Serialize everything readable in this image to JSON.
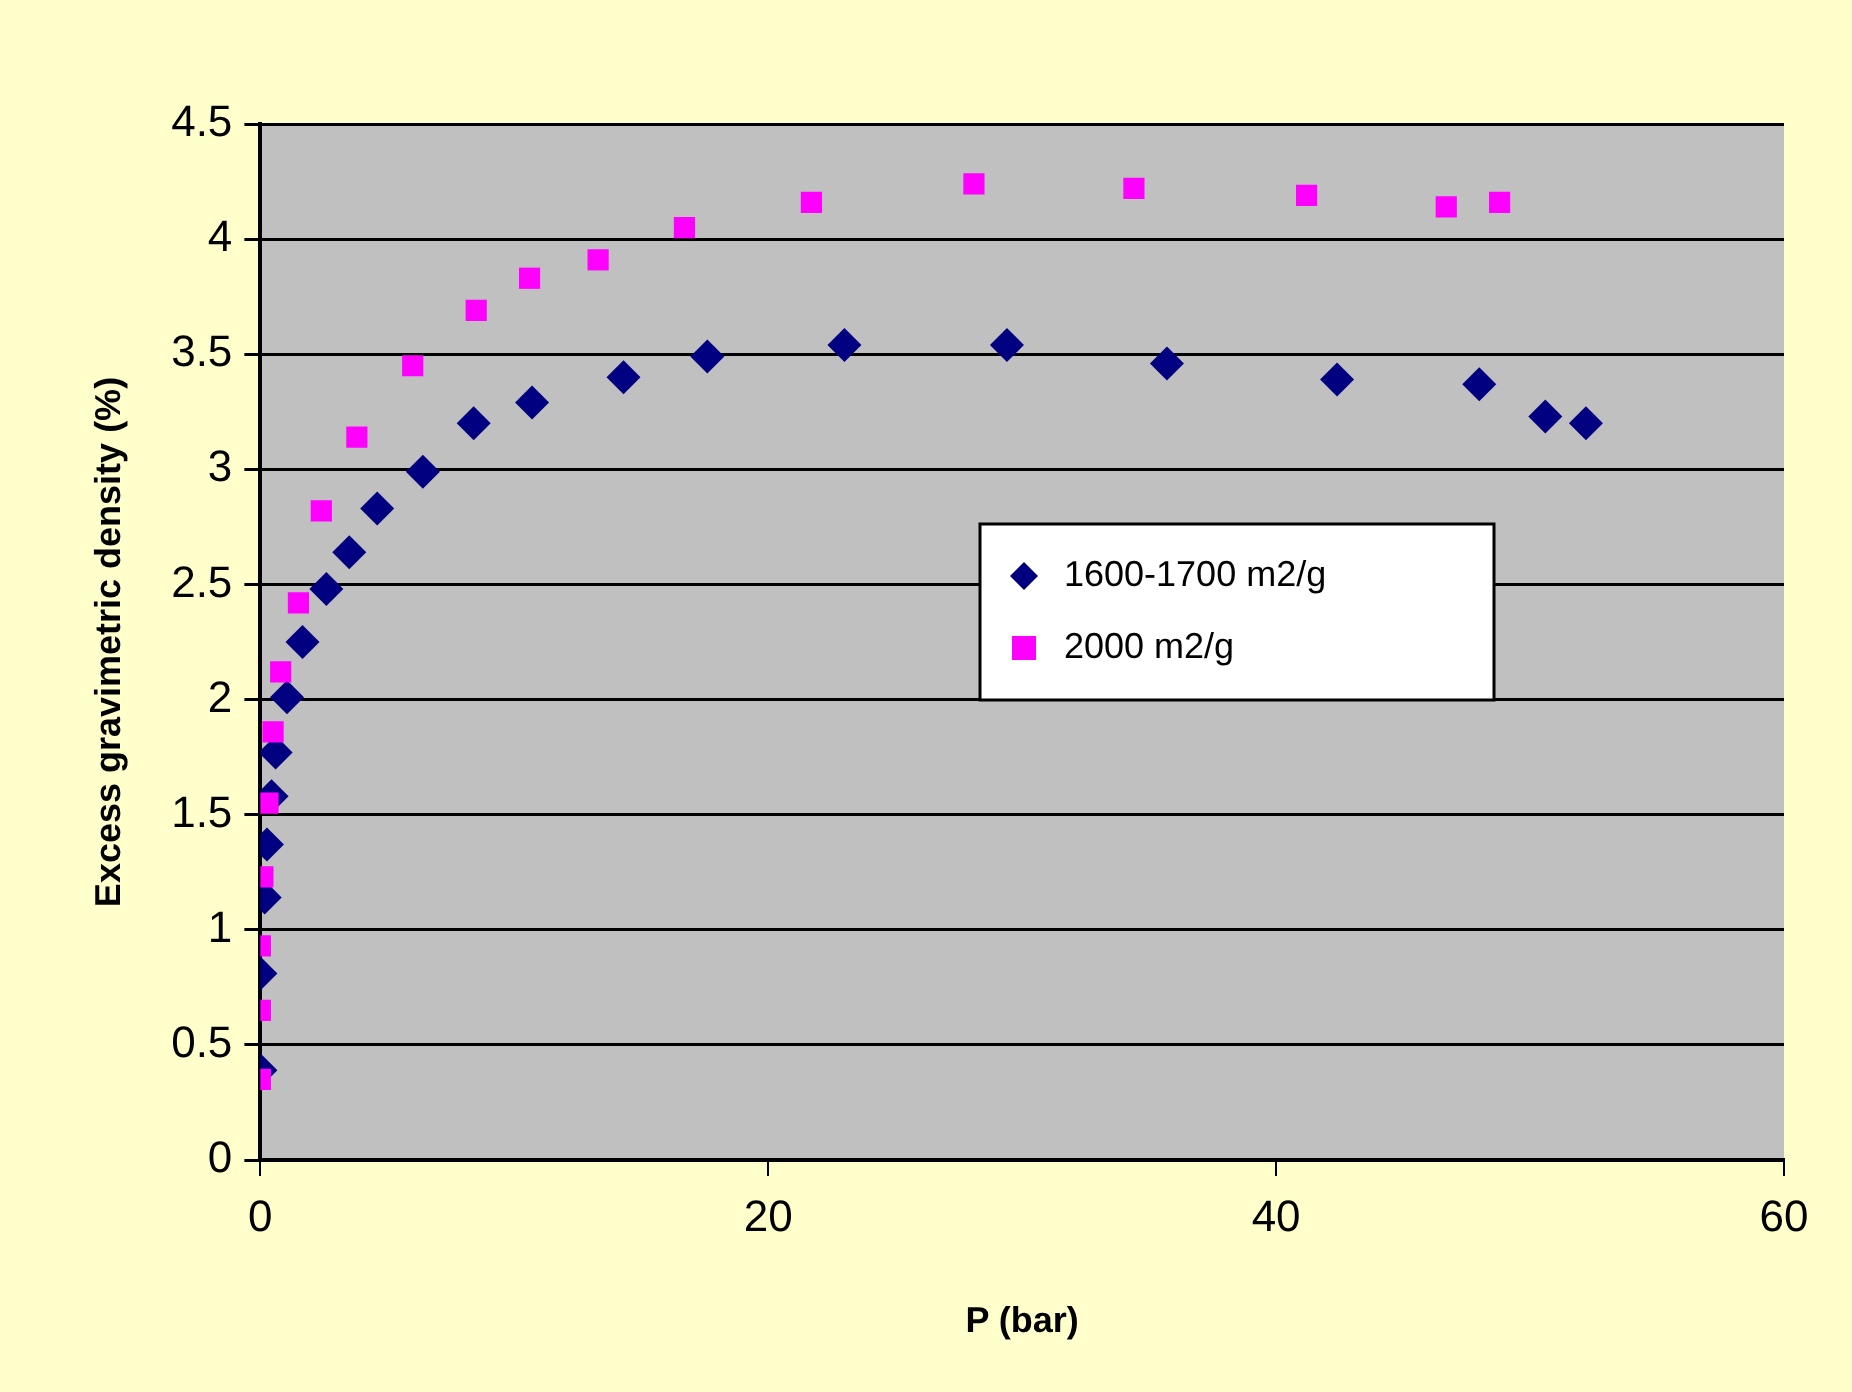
{
  "chart_data": {
    "type": "scatter",
    "xlabel": "P (bar)",
    "ylabel": "Excess gravimetric density (%)",
    "xlim": [
      0,
      60
    ],
    "xticks": [
      0,
      20,
      40,
      60
    ],
    "ylim": [
      0,
      4.5
    ],
    "yticks": [
      0,
      0.5,
      1,
      1.5,
      2,
      2.5,
      3,
      3.5,
      4,
      4.5
    ],
    "grid": "y",
    "legend": "right",
    "series": [
      {
        "name": "1600-1700 m2/g",
        "color": "#000080",
        "marker": "diamond",
        "x": [
          0,
          0,
          0.17,
          0.26,
          0.44,
          0.6,
          1.05,
          1.66,
          2.6,
          3.5,
          4.6,
          6.4,
          8.4,
          10.7,
          14.3,
          17.6,
          23.0,
          29.4,
          35.7,
          42.4,
          48.0,
          50.6,
          52.2
        ],
        "values": [
          0.39,
          0.81,
          1.14,
          1.37,
          1.58,
          1.77,
          2.01,
          2.25,
          2.48,
          2.64,
          2.83,
          2.99,
          3.2,
          3.29,
          3.4,
          3.49,
          3.54,
          3.54,
          3.46,
          3.39,
          3.37,
          3.23,
          3.2
        ]
      },
      {
        "name": "2000 m2/g",
        "color": "#ff00ff",
        "marker": "square",
        "x": [
          0,
          0,
          0,
          0.1,
          0.3,
          0.5,
          0.8,
          1.5,
          2.4,
          3.8,
          6.0,
          8.5,
          10.6,
          13.3,
          16.7,
          21.7,
          28.1,
          34.4,
          41.2,
          46.7,
          48.8
        ],
        "values": [
          0.35,
          0.65,
          0.93,
          1.23,
          1.55,
          1.86,
          2.12,
          2.42,
          2.82,
          3.14,
          3.45,
          3.69,
          3.83,
          3.91,
          4.05,
          4.16,
          4.24,
          4.22,
          4.19,
          4.14,
          4.16
        ]
      }
    ]
  }
}
